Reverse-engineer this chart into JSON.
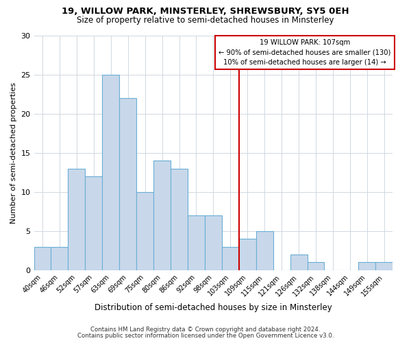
{
  "title1": "19, WILLOW PARK, MINSTERLEY, SHREWSBURY, SY5 0EH",
  "title2": "Size of property relative to semi-detached houses in Minsterley",
  "xlabel": "Distribution of semi-detached houses by size in Minsterley",
  "ylabel": "Number of semi-detached properties",
  "footnote1": "Contains HM Land Registry data © Crown copyright and database right 2024.",
  "footnote2": "Contains public sector information licensed under the Open Government Licence v3.0.",
  "bin_labels": [
    "40sqm",
    "46sqm",
    "52sqm",
    "57sqm",
    "63sqm",
    "69sqm",
    "75sqm",
    "80sqm",
    "86sqm",
    "92sqm",
    "98sqm",
    "103sqm",
    "109sqm",
    "115sqm",
    "121sqm",
    "126sqm",
    "132sqm",
    "138sqm",
    "144sqm",
    "149sqm",
    "155sqm"
  ],
  "bar_heights": [
    3,
    3,
    13,
    12,
    25,
    22,
    10,
    14,
    13,
    7,
    7,
    3,
    4,
    5,
    0,
    2,
    1,
    0,
    0,
    1,
    1
  ],
  "bar_color": "#c8d8ea",
  "bar_edge_color": "#6aaed6",
  "ylim": [
    0,
    30
  ],
  "yticks": [
    0,
    5,
    10,
    15,
    20,
    25,
    30
  ],
  "vline_color": "#cc0000",
  "annotation_title": "19 WILLOW PARK: 107sqm",
  "annotation_line1": "← 90% of semi-detached houses are smaller (130)",
  "annotation_line2": "10% of semi-detached houses are larger (14) →",
  "annotation_box_color": "#cc0000",
  "background_color": "#ffffff",
  "grid_color": "#d0d8e0"
}
